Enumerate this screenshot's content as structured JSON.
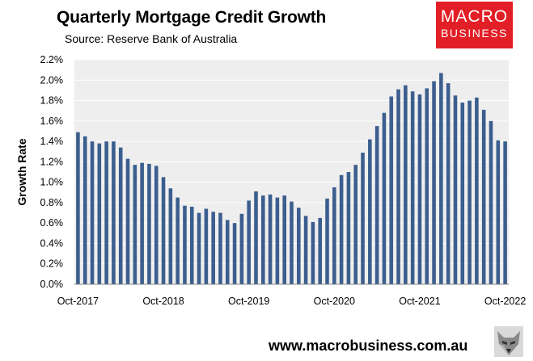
{
  "header": {
    "title": "Quarterly Mortgage Credit Growth",
    "subtitle": "Source: Reserve Bank of Australia"
  },
  "logo": {
    "line1": "MACRO",
    "line2": "BUSINESS",
    "color": "#e21f26"
  },
  "footer": {
    "url": "www.macrobusiness.com.au",
    "mascot_icon": "wolf-icon"
  },
  "chart_data": {
    "type": "bar",
    "ylabel": "Growth Rate",
    "ylim": [
      0,
      2.2
    ],
    "yticks": [
      "0.0%",
      "0.2%",
      "0.4%",
      "0.6%",
      "0.8%",
      "1.0%",
      "1.2%",
      "1.4%",
      "1.6%",
      "1.8%",
      "2.0%",
      "2.2%"
    ],
    "xtick_labels": [
      "Oct-2017",
      "Oct-2018",
      "Oct-2019",
      "Oct-2020",
      "Oct-2021",
      "Oct-2022"
    ],
    "xtick_index": [
      0,
      12,
      24,
      36,
      48,
      60
    ],
    "bar_color": "#3b5e8e",
    "plot_background": "#eeeeee",
    "grid": true,
    "values": [
      1.49,
      1.45,
      1.4,
      1.38,
      1.4,
      1.4,
      1.34,
      1.23,
      1.17,
      1.19,
      1.18,
      1.16,
      1.05,
      0.94,
      0.85,
      0.77,
      0.76,
      0.7,
      0.74,
      0.71,
      0.7,
      0.63,
      0.6,
      0.69,
      0.82,
      0.91,
      0.87,
      0.88,
      0.85,
      0.87,
      0.81,
      0.75,
      0.67,
      0.61,
      0.65,
      0.84,
      0.95,
      1.07,
      1.1,
      1.17,
      1.29,
      1.42,
      1.55,
      1.68,
      1.84,
      1.91,
      1.95,
      1.89,
      1.86,
      1.92,
      1.99,
      2.07,
      1.97,
      1.85,
      1.78,
      1.8,
      1.83,
      1.71,
      1.6,
      1.41,
      1.4
    ]
  }
}
